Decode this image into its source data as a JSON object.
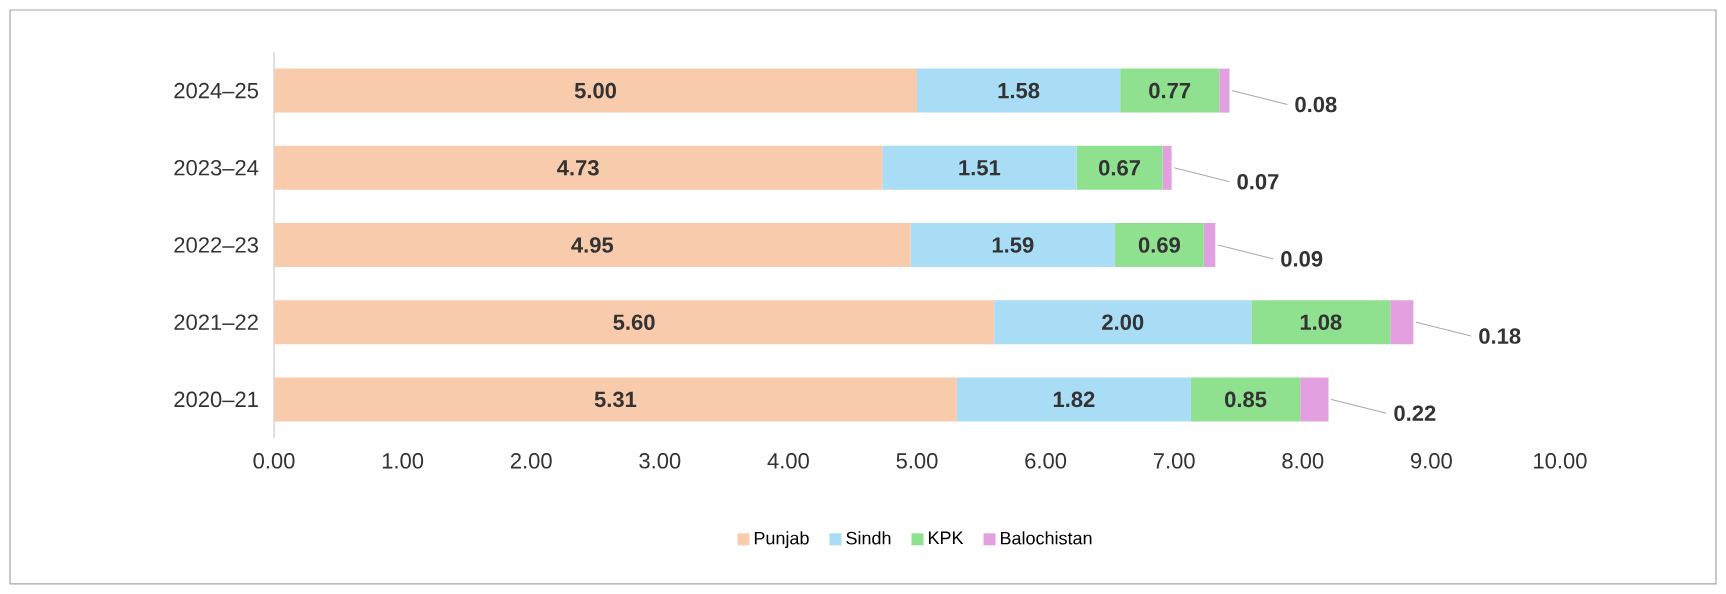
{
  "chart_data": {
    "type": "bar",
    "orientation": "horizontal",
    "stacked": true,
    "categories": [
      "2024–25",
      "2023–24",
      "2022–23",
      "2021–22",
      "2020–21"
    ],
    "series": [
      {
        "name": "Punjab",
        "color": "#f8cbad",
        "values": [
          5.0,
          4.73,
          4.95,
          5.6,
          5.31
        ],
        "value_labels": [
          "5.00",
          "4.73",
          "4.95",
          "5.60",
          "5.31"
        ]
      },
      {
        "name": "Sindh",
        "color": "#a9dcf5",
        "values": [
          1.58,
          1.51,
          1.59,
          2.0,
          1.82
        ],
        "value_labels": [
          "1.58",
          "1.51",
          "1.59",
          "2.00",
          "1.82"
        ]
      },
      {
        "name": "KPK",
        "color": "#8fe08f",
        "values": [
          0.77,
          0.67,
          0.69,
          1.08,
          0.85
        ],
        "value_labels": [
          "0.77",
          "0.67",
          "0.69",
          "1.08",
          "0.85"
        ]
      },
      {
        "name": "Balochistan",
        "color": "#e3a0e0",
        "values": [
          0.08,
          0.07,
          0.09,
          0.18,
          0.22
        ],
        "value_labels": [
          "0.08",
          "0.07",
          "0.09",
          "0.18",
          "0.22"
        ]
      }
    ],
    "xlim": [
      0,
      10
    ],
    "xticks": [
      {
        "value": 0,
        "label": "0.00"
      },
      {
        "value": 1,
        "label": "1.00"
      },
      {
        "value": 2,
        "label": "2.00"
      },
      {
        "value": 3,
        "label": "3.00"
      },
      {
        "value": 4,
        "label": "4.00"
      },
      {
        "value": 5,
        "label": "5.00"
      },
      {
        "value": 6,
        "label": "6.00"
      },
      {
        "value": 7,
        "label": "7.00"
      },
      {
        "value": 8,
        "label": "8.00"
      },
      {
        "value": 9,
        "label": "9.00"
      },
      {
        "value": 10,
        "label": "10.00"
      }
    ],
    "legend": "bottom",
    "grid": false
  }
}
